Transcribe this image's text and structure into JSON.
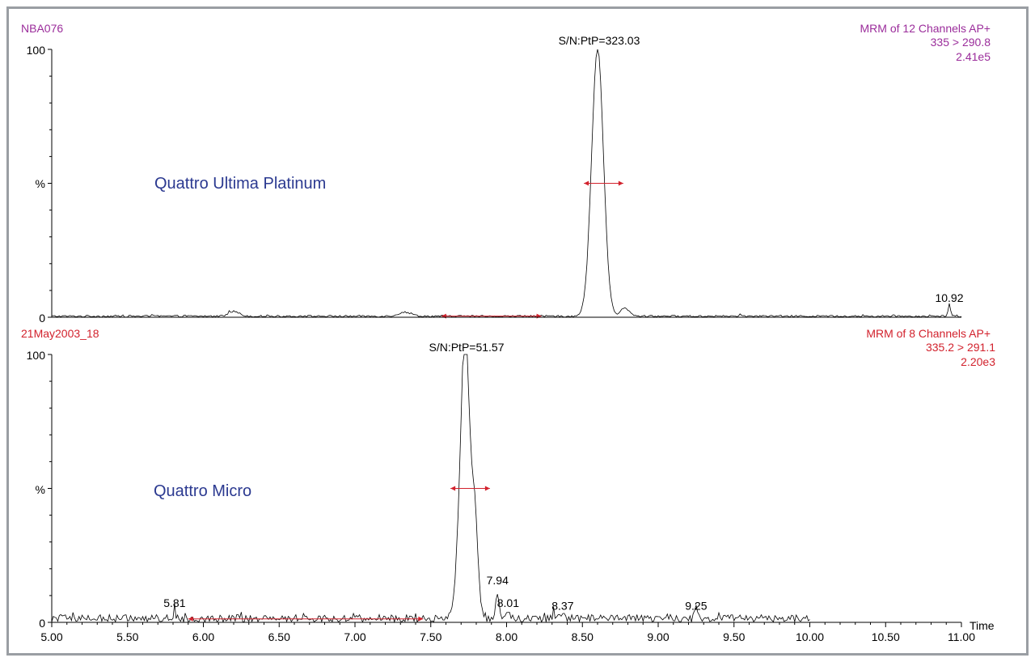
{
  "colors": {
    "top_header": "#9b2d9b",
    "bottom_header": "#d2222d",
    "instrument_label": "#2b3990",
    "trace": "#000000",
    "baseline_marker": "#d2222d",
    "axis": "#000000"
  },
  "chart_data": [
    {
      "type": "line",
      "sample_id": "NBA076",
      "header_lines": [
        "MRM of 12 Channels AP+",
        "335 > 290.8",
        "2.41e5"
      ],
      "instrument_label": "Quattro Ultima Platinum",
      "sn_label": "S/N:PtP=323.03",
      "ylabel": "%",
      "y_ticks": [
        "100",
        "0"
      ],
      "ylim": [
        0,
        100
      ],
      "xlim": [
        5.0,
        11.0
      ],
      "grid": false,
      "peak_labels": [
        {
          "x": 10.92,
          "y": 4.5,
          "text": "10.92"
        }
      ],
      "noise_region": [
        5.0,
        11.0
      ],
      "noise_level": 0.4,
      "noise_amplitude": 0.35,
      "bumps": [
        {
          "x": 6.2,
          "y": 1.8,
          "w": 0.05
        },
        {
          "x": 7.33,
          "y": 1.5,
          "w": 0.06
        }
      ],
      "peaks": [
        {
          "x": 8.6,
          "y": 100,
          "w": 0.055
        },
        {
          "x": 8.78,
          "y": 3,
          "w": 0.04
        },
        {
          "x": 10.92,
          "y": 4.5,
          "w": 0.01
        }
      ],
      "width_marker": {
        "x1": 8.51,
        "x2": 8.77,
        "y": 50
      },
      "baseline_marker": {
        "x1": 7.57,
        "x2": 8.23,
        "y": 0.4
      }
    },
    {
      "type": "line",
      "sample_id": "21May2003_18",
      "header_lines": [
        "MRM of 8 Channels AP+",
        "335.2 > 291.1",
        "2.20e3"
      ],
      "instrument_label": "Quattro Micro",
      "sn_label": "S/N:PtP=51.57",
      "ylabel": "%",
      "y_ticks": [
        "100",
        "0"
      ],
      "ylim": [
        0,
        100
      ],
      "xlim": [
        5.0,
        11.0
      ],
      "grid": false,
      "peak_labels": [
        {
          "x": 5.81,
          "y": 4.5,
          "text": "5.81"
        },
        {
          "x": 7.94,
          "y": 13,
          "text": "7.94"
        },
        {
          "x": 8.01,
          "y": 4.5,
          "text": "8.01"
        },
        {
          "x": 8.37,
          "y": 3.5,
          "text": "8.37"
        },
        {
          "x": 9.25,
          "y": 3.5,
          "text": "9.25"
        }
      ],
      "noise_region": [
        5.0,
        10.0
      ],
      "noise_level": 1.5,
      "noise_amplitude": 1.4,
      "bumps": [],
      "peaks": [
        {
          "x": 7.73,
          "y": 100,
          "w": 0.038
        },
        {
          "x": 7.79,
          "y": 38,
          "w": 0.03
        },
        {
          "x": 7.69,
          "y": 22,
          "w": 0.04
        },
        {
          "x": 7.94,
          "y": 10,
          "w": 0.016
        },
        {
          "x": 5.81,
          "y": 4.5,
          "w": 0.008
        },
        {
          "x": 8.01,
          "y": 3.5,
          "w": 0.01
        },
        {
          "x": 8.31,
          "y": 3,
          "w": 0.008
        },
        {
          "x": 8.37,
          "y": 3,
          "w": 0.008
        },
        {
          "x": 9.06,
          "y": 2.5,
          "w": 0.01
        },
        {
          "x": 9.25,
          "y": 3.5,
          "w": 0.012
        }
      ],
      "width_marker": {
        "x1": 7.63,
        "x2": 7.89,
        "y": 50
      },
      "baseline_marker": {
        "x1": 5.9,
        "x2": 7.45,
        "y": 1.3
      }
    }
  ],
  "x_axis": {
    "label": "Time",
    "ticks": [
      "5.00",
      "5.50",
      "6.00",
      "6.50",
      "7.00",
      "7.50",
      "8.00",
      "8.50",
      "9.00",
      "9.50",
      "10.00",
      "10.50",
      "11.00"
    ],
    "tick_values": [
      5.0,
      5.5,
      6.0,
      6.5,
      7.0,
      7.5,
      8.0,
      8.5,
      9.0,
      9.5,
      10.0,
      10.5,
      11.0
    ]
  }
}
